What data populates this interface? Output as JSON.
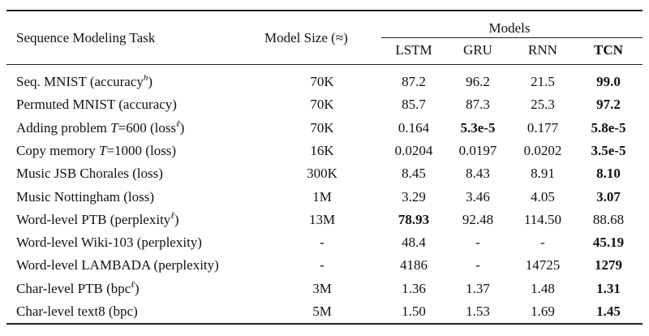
{
  "header": {
    "task": "Sequence Modeling Task",
    "size": "Model Size (≈)",
    "models": "Models",
    "cols": [
      "LSTM",
      "GRU",
      "RNN",
      "TCN"
    ]
  },
  "rows": [
    {
      "task": "Seq. MNIST (accuracy",
      "sup": "h",
      "tail": ")",
      "size": "70K",
      "vals": [
        "87.2",
        "96.2",
        "21.5",
        "99.0"
      ],
      "bold": [
        false,
        false,
        false,
        true
      ]
    },
    {
      "task": "Permuted MNIST (accuracy)",
      "sup": "",
      "tail": "",
      "size": "70K",
      "vals": [
        "85.7",
        "87.3",
        "25.3",
        "97.2"
      ],
      "bold": [
        false,
        false,
        false,
        true
      ]
    },
    {
      "task": "Adding problem T=600 (loss",
      "sup": "ℓ",
      "tail": ")",
      "size": "70K",
      "vals": [
        "0.164",
        "5.3e-5",
        "0.177",
        "5.8e-5"
      ],
      "bold": [
        false,
        true,
        false,
        true
      ]
    },
    {
      "task": "Copy memory T=1000 (loss)",
      "sup": "",
      "tail": "",
      "size": "16K",
      "vals": [
        "0.0204",
        "0.0197",
        "0.0202",
        "3.5e-5"
      ],
      "bold": [
        false,
        false,
        false,
        true
      ]
    },
    {
      "task": "Music JSB Chorales (loss)",
      "sup": "",
      "tail": "",
      "size": "300K",
      "vals": [
        "8.45",
        "8.43",
        "8.91",
        "8.10"
      ],
      "bold": [
        false,
        false,
        false,
        true
      ]
    },
    {
      "task": "Music Nottingham (loss)",
      "sup": "",
      "tail": "",
      "size": "1M",
      "vals": [
        "3.29",
        "3.46",
        "4.05",
        "3.07"
      ],
      "bold": [
        false,
        false,
        false,
        true
      ]
    },
    {
      "task": "Word-level PTB (perplexity",
      "sup": "ℓ",
      "tail": ")",
      "size": "13M",
      "vals": [
        "78.93",
        "92.48",
        "114.50",
        "88.68"
      ],
      "bold": [
        true,
        false,
        false,
        false
      ]
    },
    {
      "task": "Word-level Wiki-103 (perplexity)",
      "sup": "",
      "tail": "",
      "size": "-",
      "vals": [
        "48.4",
        "-",
        "-",
        "45.19"
      ],
      "bold": [
        false,
        false,
        false,
        true
      ]
    },
    {
      "task": "Word-level LAMBADA (perplexity)",
      "sup": "",
      "tail": "",
      "size": "-",
      "vals": [
        "4186",
        "-",
        "14725",
        "1279"
      ],
      "bold": [
        false,
        false,
        false,
        true
      ]
    },
    {
      "task": "Char-level PTB (bpc",
      "sup": "ℓ",
      "tail": ")",
      "size": "3M",
      "vals": [
        "1.36",
        "1.37",
        "1.48",
        "1.31"
      ],
      "bold": [
        false,
        false,
        false,
        true
      ]
    },
    {
      "task": "Char-level text8 (bpc)",
      "sup": "",
      "tail": "",
      "size": "5M",
      "vals": [
        "1.50",
        "1.53",
        "1.69",
        "1.45"
      ],
      "bold": [
        false,
        false,
        false,
        true
      ]
    }
  ]
}
